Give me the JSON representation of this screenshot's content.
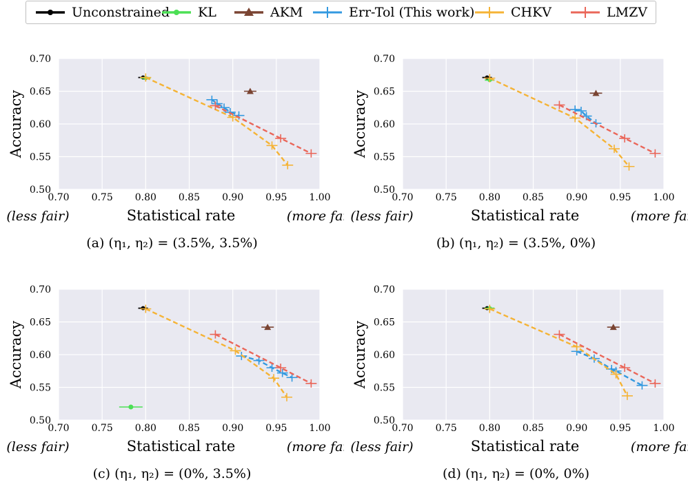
{
  "legend": [
    {
      "label": "Unconstrained",
      "color": "#000000",
      "marker": "dot"
    },
    {
      "label": "KL",
      "color": "#4cdf55",
      "marker": "dot"
    },
    {
      "label": "AKM",
      "color": "#7a4432",
      "marker": "triangle"
    },
    {
      "label": "Err-Tol (This work)",
      "color": "#3399e0",
      "marker": "plus"
    },
    {
      "label": "CHKV",
      "color": "#f5b335",
      "marker": "plus"
    },
    {
      "label": "LMZV",
      "color": "#ea6659",
      "marker": "plus"
    }
  ],
  "chart_data": [
    {
      "type": "line",
      "caption": "(a) (η₁, η₂) = (3.5%, 3.5%)",
      "xlabel": "Statistical rate",
      "ylabel": "Accuracy",
      "xlabel_left": "(less fair)",
      "xlabel_right": "(more fair)",
      "xlim": [
        0.7,
        1.0
      ],
      "ylim": [
        0.5,
        0.7
      ],
      "xticks": [
        "0.70",
        "0.75",
        "0.80",
        "0.85",
        "0.90",
        "0.95",
        "1.00"
      ],
      "yticks": [
        "0.50",
        "0.55",
        "0.60",
        "0.65",
        "0.70"
      ],
      "grid": true,
      "series": [
        {
          "name": "Unconstrained",
          "type": "point",
          "x": [
            0.797
          ],
          "y": [
            0.671
          ]
        },
        {
          "name": "KL",
          "type": "point",
          "x": [
            0.8
          ],
          "y": [
            0.67
          ]
        },
        {
          "name": "AKM",
          "type": "point",
          "x": [
            0.92
          ],
          "y": [
            0.65
          ]
        },
        {
          "name": "Err-Tol (This work)",
          "type": "line",
          "x": [
            0.876,
            0.882,
            0.89,
            0.897,
            0.907
          ],
          "y": [
            0.637,
            0.631,
            0.625,
            0.618,
            0.613
          ]
        },
        {
          "name": "CHKV",
          "type": "line",
          "x": [
            0.8,
            0.9,
            0.945,
            0.963
          ],
          "y": [
            0.671,
            0.61,
            0.567,
            0.537
          ]
        },
        {
          "name": "LMZV",
          "type": "line",
          "x": [
            0.88,
            0.955,
            0.99
          ],
          "y": [
            0.628,
            0.578,
            0.555
          ]
        }
      ]
    },
    {
      "type": "line",
      "caption": "(b) (η₁, η₂) = (3.5%, 0%)",
      "xlabel": "Statistical rate",
      "ylabel": "Accuracy",
      "xlabel_left": "(less fair)",
      "xlabel_right": "(more fair)",
      "xlim": [
        0.7,
        1.0
      ],
      "ylim": [
        0.5,
        0.7
      ],
      "xticks": [
        "0.70",
        "0.75",
        "0.80",
        "0.85",
        "0.90",
        "0.95",
        "1.00"
      ],
      "yticks": [
        "0.50",
        "0.55",
        "0.60",
        "0.65",
        "0.70"
      ],
      "grid": true,
      "series": [
        {
          "name": "Unconstrained",
          "type": "point",
          "x": [
            0.797
          ],
          "y": [
            0.671
          ]
        },
        {
          "name": "KL",
          "type": "point",
          "x": [
            0.8
          ],
          "y": [
            0.667
          ]
        },
        {
          "name": "AKM",
          "type": "point",
          "x": [
            0.922
          ],
          "y": [
            0.647
          ]
        },
        {
          "name": "Err-Tol (This work)",
          "type": "line",
          "x": [
            0.898,
            0.905,
            0.911,
            0.922
          ],
          "y": [
            0.622,
            0.62,
            0.612,
            0.601
          ]
        },
        {
          "name": "CHKV",
          "type": "line",
          "x": [
            0.8,
            0.898,
            0.943,
            0.96
          ],
          "y": [
            0.67,
            0.609,
            0.562,
            0.535
          ]
        },
        {
          "name": "LMZV",
          "type": "line",
          "x": [
            0.88,
            0.955,
            0.99
          ],
          "y": [
            0.629,
            0.578,
            0.555
          ]
        }
      ]
    },
    {
      "type": "line",
      "caption": "(c) (η₁, η₂) = (0%, 3.5%)",
      "xlabel": "Statistical rate",
      "ylabel": "Accuracy",
      "xlabel_left": "(less fair)",
      "xlabel_right": "(more fair)",
      "xlim": [
        0.7,
        1.0
      ],
      "ylim": [
        0.5,
        0.7
      ],
      "xticks": [
        "0.70",
        "0.75",
        "0.80",
        "0.85",
        "0.90",
        "0.95",
        "1.00"
      ],
      "yticks": [
        "0.50",
        "0.55",
        "0.60",
        "0.65",
        "0.70"
      ],
      "grid": true,
      "series": [
        {
          "name": "Unconstrained",
          "type": "point",
          "x": [
            0.797
          ],
          "y": [
            0.671
          ]
        },
        {
          "name": "KL",
          "type": "point",
          "x": [
            0.783
          ],
          "y": [
            0.52
          ]
        },
        {
          "name": "AKM",
          "type": "point",
          "x": [
            0.94
          ],
          "y": [
            0.642
          ]
        },
        {
          "name": "Err-Tol (This work)",
          "type": "line",
          "x": [
            0.91,
            0.93,
            0.945,
            0.957,
            0.968
          ],
          "y": [
            0.598,
            0.591,
            0.58,
            0.572,
            0.565
          ]
        },
        {
          "name": "CHKV",
          "type": "line",
          "x": [
            0.8,
            0.903,
            0.947,
            0.962
          ],
          "y": [
            0.67,
            0.606,
            0.564,
            0.535
          ]
        },
        {
          "name": "LMZV",
          "type": "line",
          "x": [
            0.88,
            0.955,
            0.99
          ],
          "y": [
            0.631,
            0.58,
            0.556
          ]
        }
      ]
    },
    {
      "type": "line",
      "caption": "(d) (η₁, η₂) = (0%, 0%)",
      "xlabel": "Statistical rate",
      "ylabel": "Accuracy",
      "xlabel_left": "(less fair)",
      "xlabel_right": "(more fair)",
      "xlim": [
        0.7,
        1.0
      ],
      "ylim": [
        0.5,
        0.7
      ],
      "xticks": [
        "0.70",
        "0.75",
        "0.80",
        "0.85",
        "0.90",
        "0.95",
        "1.00"
      ],
      "yticks": [
        "0.50",
        "0.55",
        "0.60",
        "0.65",
        "0.70"
      ],
      "grid": true,
      "series": [
        {
          "name": "Unconstrained",
          "type": "point",
          "x": [
            0.797
          ],
          "y": [
            0.671
          ]
        },
        {
          "name": "KL",
          "type": "point",
          "x": [
            0.8
          ],
          "y": [
            0.671
          ]
        },
        {
          "name": "AKM",
          "type": "point",
          "x": [
            0.942
          ],
          "y": [
            0.642
          ]
        },
        {
          "name": "Err-Tol (This work)",
          "type": "line",
          "x": [
            0.9,
            0.92,
            0.94,
            0.945,
            0.975
          ],
          "y": [
            0.605,
            0.594,
            0.578,
            0.575,
            0.553
          ]
        },
        {
          "name": "CHKV",
          "type": "line",
          "x": [
            0.8,
            0.9,
            0.945,
            0.958
          ],
          "y": [
            0.67,
            0.612,
            0.57,
            0.537
          ]
        },
        {
          "name": "LMZV",
          "type": "line",
          "x": [
            0.88,
            0.955,
            0.99
          ],
          "y": [
            0.631,
            0.58,
            0.556
          ]
        }
      ]
    }
  ]
}
